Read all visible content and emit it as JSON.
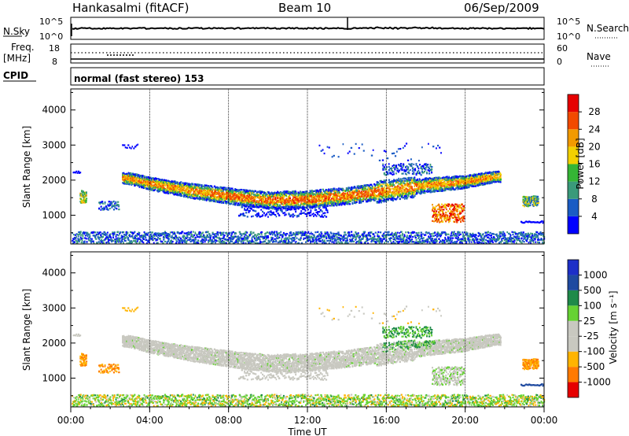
{
  "header": {
    "radar": "Hankasalmi (fitACF)",
    "beam": "Beam 10",
    "date": "06/Sep/2009"
  },
  "strip_noise": {
    "left_label": "N.Sky",
    "left_top": "10^5",
    "left_bottom": "10^0",
    "right_top": "10^5",
    "right_bottom": "10^0",
    "right_label": "N.Search"
  },
  "strip_freq": {
    "left_label_1": "Freq.",
    "left_label_2": "[MHz]",
    "left_top": "18",
    "left_bottom": "8",
    "right_top": "60",
    "right_bottom": "0",
    "right_label": "Nave"
  },
  "strip_cpid": {
    "label": "CPID",
    "text": "normal (fast stereo) 153"
  },
  "colors": {
    "power": [
      "#0000ff",
      "#1a5cc4",
      "#3a9a7a",
      "#35b535",
      "#f2d000",
      "#f29a00",
      "#f24a00",
      "#e60000"
    ],
    "velocity": [
      "#e60000",
      "#ff7a00",
      "#ffb400",
      "#c8c8c0",
      "#c8c8c0",
      "#66d233",
      "#1f8a4a",
      "#1f4aa0",
      "#1d2fc8"
    ]
  },
  "chart_data": [
    {
      "type": "heatmap",
      "panel": "power",
      "ylabel": "Slant Range [km]",
      "ylim": [
        180,
        4600
      ],
      "xlim": [
        0,
        24
      ],
      "yticks": [
        "1000",
        "2000",
        "3000",
        "4000"
      ],
      "colorbar_label": "Power [dB]",
      "colorbar_ticks": [
        "4",
        "8",
        "12",
        "16",
        "20",
        "24",
        "28"
      ],
      "ridge": [
        {
          "t": 2.9,
          "r": 2050
        },
        {
          "t": 4.0,
          "r": 1900
        },
        {
          "t": 6.0,
          "r": 1700
        },
        {
          "t": 8.0,
          "r": 1550
        },
        {
          "t": 10.0,
          "r": 1420
        },
        {
          "t": 12.0,
          "r": 1450
        },
        {
          "t": 14.0,
          "r": 1550
        },
        {
          "t": 16.0,
          "r": 1700
        },
        {
          "t": 18.0,
          "r": 1850
        },
        {
          "t": 20.0,
          "r": 1950
        },
        {
          "t": 21.5,
          "r": 2100
        }
      ]
    },
    {
      "type": "heatmap",
      "panel": "velocity",
      "ylabel": "Slant Range [km]",
      "ylim": [
        180,
        4600
      ],
      "xlim": [
        0,
        24
      ],
      "yticks": [
        "1000",
        "2000",
        "3000",
        "4000"
      ],
      "colorbar_label": "Velocity [m s⁻¹]",
      "colorbar_ticks": [
        "1000",
        "500",
        "100",
        "25",
        "-25",
        "-100",
        "-500",
        "-1000"
      ]
    }
  ],
  "x_axis": {
    "ticks": [
      "00:00",
      "04:00",
      "08:00",
      "12:00",
      "16:00",
      "20:00",
      "00:00"
    ],
    "label": "Time UT"
  }
}
